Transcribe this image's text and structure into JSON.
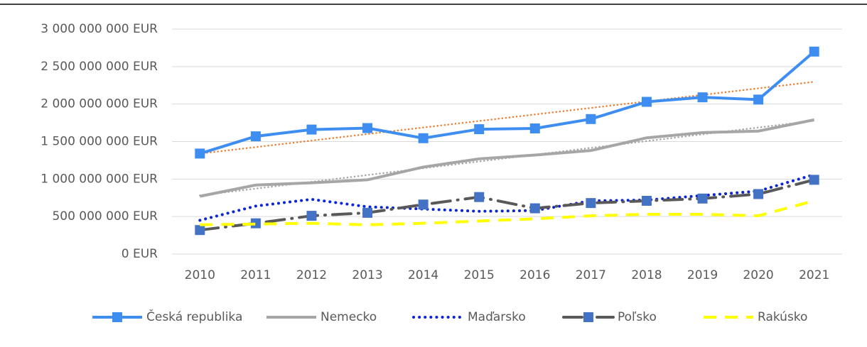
{
  "chart_data": {
    "type": "line",
    "categories": [
      "2010",
      "2011",
      "2012",
      "2013",
      "2014",
      "2015",
      "2016",
      "2017",
      "2018",
      "2019",
      "2020",
      "2021"
    ],
    "ylim": [
      0,
      3000000000
    ],
    "yticks": [
      {
        "value": 0,
        "label": "0 EUR"
      },
      {
        "value": 500000000,
        "label": "500 000 000 EUR"
      },
      {
        "value": 1000000000,
        "label": "1 000 000 000 EUR"
      },
      {
        "value": 1500000000,
        "label": "1 500 000 000 EUR"
      },
      {
        "value": 2000000000,
        "label": "2 000 000 000 EUR"
      },
      {
        "value": 2500000000,
        "label": "2 500 000 000 EUR"
      },
      {
        "value": 3000000000,
        "label": "3 000 000 000 EUR"
      }
    ],
    "grid": true,
    "legend": "bottom",
    "series": [
      {
        "name": "Česká republika",
        "color": "#3d8ef0",
        "line_style": "solid",
        "marker": "square",
        "trendline_color": "#ed7d31",
        "values": [
          1340000000,
          1570000000,
          1660000000,
          1680000000,
          1545000000,
          1665000000,
          1675000000,
          1800000000,
          2030000000,
          2090000000,
          2060000000,
          2700000000
        ]
      },
      {
        "name": "Nemecko",
        "color": "#a6a6a6",
        "line_style": "solid",
        "trendline_color": "#a6a6a6",
        "values": [
          770000000,
          920000000,
          950000000,
          990000000,
          1160000000,
          1270000000,
          1320000000,
          1380000000,
          1550000000,
          1620000000,
          1640000000,
          1790000000
        ]
      },
      {
        "name": "Maďarsko",
        "color": "#0a25d6",
        "line_style": "dotted",
        "values": [
          450000000,
          640000000,
          730000000,
          630000000,
          600000000,
          570000000,
          580000000,
          710000000,
          720000000,
          780000000,
          840000000,
          1060000000
        ]
      },
      {
        "name": "Poľsko",
        "color": "#595959",
        "line_style": "long-dash-dot",
        "marker": "square",
        "marker_color": "#4472c4",
        "values": [
          320000000,
          410000000,
          510000000,
          550000000,
          660000000,
          760000000,
          610000000,
          680000000,
          710000000,
          740000000,
          800000000,
          990000000
        ]
      },
      {
        "name": "Rakúsko",
        "color": "#ffff00",
        "line_style": "dash",
        "values": [
          390000000,
          400000000,
          410000000,
          390000000,
          410000000,
          440000000,
          470000000,
          510000000,
          530000000,
          530000000,
          510000000,
          710000000
        ]
      }
    ]
  }
}
